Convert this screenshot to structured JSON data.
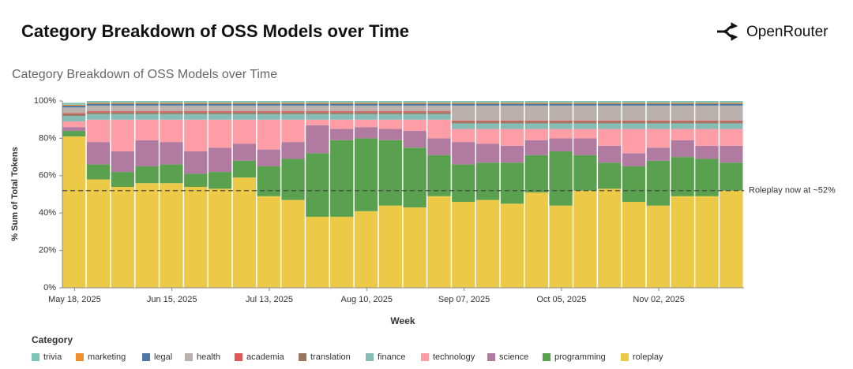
{
  "header": {
    "title": "Category Breakdown of OSS Models over Time",
    "brand": "OpenRouter"
  },
  "chart_data": {
    "type": "stacked-bar",
    "title": "Category Breakdown of OSS Models over Time",
    "x_label": "Week",
    "y_label": "% Sum of Total Tokens",
    "categories": [
      "May 18, 2025",
      null,
      null,
      null,
      "Jun 15, 2025",
      null,
      null,
      null,
      "Jul 13, 2025",
      null,
      null,
      null,
      "Aug 10, 2025",
      null,
      null,
      null,
      "Sep 07, 2025",
      null,
      null,
      null,
      "Oct 05, 2025",
      null,
      null,
      null,
      "Nov 02, 2025",
      null,
      null,
      null
    ],
    "ylim": [
      0,
      100
    ],
    "yticks": [
      {
        "value": 0,
        "label": "0%"
      },
      {
        "value": 20,
        "label": "20%"
      },
      {
        "value": 40,
        "label": "40%"
      },
      {
        "value": 60,
        "label": "60%"
      },
      {
        "value": 80,
        "label": "80%"
      },
      {
        "value": 100,
        "label": "100%"
      }
    ],
    "legend_title": "Category",
    "annotation": {
      "text": "Roleplay now at ~52%",
      "value": 52
    },
    "series": [
      {
        "name": "roleplay",
        "color": "#edc948",
        "values": [
          81,
          58,
          54,
          56,
          56,
          54,
          53,
          59,
          49,
          47,
          38,
          38,
          41,
          44,
          43,
          49,
          46,
          47,
          45,
          51,
          44,
          52,
          53,
          46,
          44,
          49,
          49,
          52
        ]
      },
      {
        "name": "programming",
        "color": "#59a14f",
        "values": [
          3,
          8,
          8,
          9,
          10,
          7,
          9,
          9,
          16,
          22,
          34,
          41,
          39,
          35,
          32,
          22,
          20,
          20,
          22,
          20,
          29,
          19,
          14,
          19,
          24,
          21,
          20,
          15
        ]
      },
      {
        "name": "science",
        "color": "#b07aa1",
        "values": [
          2,
          12,
          11,
          14,
          12,
          12,
          13,
          9,
          9,
          9,
          15,
          6,
          6,
          6,
          9,
          9,
          12,
          10,
          9,
          8,
          7,
          9,
          9,
          7,
          7,
          9,
          7,
          9
        ]
      },
      {
        "name": "technology",
        "color": "#ff9da7",
        "values": [
          3,
          12,
          17,
          11,
          12,
          17,
          15,
          13,
          16,
          12,
          3,
          5,
          4,
          5,
          6,
          10,
          7,
          8,
          9,
          6,
          5,
          5,
          9,
          13,
          10,
          6,
          9,
          9
        ]
      },
      {
        "name": "finance",
        "color": "#86bcb6",
        "values": [
          3,
          3,
          3,
          3,
          3,
          3,
          3,
          3,
          3,
          3,
          3,
          3,
          3,
          3,
          3,
          3,
          3,
          3,
          3,
          3,
          3,
          3,
          3,
          3,
          3,
          3,
          3,
          3
        ]
      },
      {
        "name": "translation",
        "color": "#9c755f",
        "values": [
          1,
          1,
          1,
          1,
          1,
          1,
          1,
          1,
          1,
          1,
          1,
          1,
          1,
          1,
          1,
          1,
          1,
          1,
          1,
          1,
          1,
          1,
          1,
          1,
          1,
          1,
          1,
          1
        ]
      },
      {
        "name": "academia",
        "color": "#e15759",
        "values": [
          0.5,
          0.5,
          0.5,
          0.5,
          0.5,
          0.5,
          0.5,
          0.5,
          0.5,
          0.5,
          0.5,
          0.5,
          0.5,
          0.5,
          0.5,
          0.5,
          0.5,
          0.5,
          0.5,
          0.5,
          0.5,
          0.5,
          0.5,
          0.5,
          0.5,
          0.5,
          0.5,
          0.5
        ]
      },
      {
        "name": "health",
        "color": "#bab0ac",
        "values": [
          3,
          3,
          3,
          3,
          3,
          3,
          3,
          3,
          3,
          3,
          3,
          3,
          3,
          3,
          3,
          3,
          8,
          8,
          8,
          8,
          8,
          8,
          8,
          8,
          8,
          8,
          8,
          8
        ]
      },
      {
        "name": "legal",
        "color": "#4e79a7",
        "values": [
          1,
          1,
          1,
          1,
          1,
          1,
          1,
          1,
          1,
          1,
          1,
          1,
          1,
          1,
          1,
          1,
          1,
          1,
          1,
          1,
          1,
          1,
          1,
          1,
          1,
          1,
          1,
          1
        ]
      },
      {
        "name": "marketing",
        "color": "#f28e2b",
        "values": [
          0.5,
          0.5,
          0.5,
          0.5,
          0.5,
          0.5,
          0.5,
          0.5,
          0.5,
          0.5,
          0.5,
          0.5,
          0.5,
          0.5,
          0.5,
          0.5,
          0.5,
          0.5,
          0.5,
          0.5,
          0.5,
          0.5,
          0.5,
          0.5,
          0.5,
          0.5,
          0.5,
          0.5
        ]
      },
      {
        "name": "trivia",
        "color": "#7fc4b8",
        "values": [
          1,
          1,
          1,
          1,
          1,
          1,
          1,
          1,
          1,
          1,
          1,
          1,
          1,
          1,
          1,
          1,
          1,
          1,
          1,
          1,
          1,
          1,
          1,
          1,
          1,
          1,
          1,
          1
        ]
      }
    ]
  }
}
